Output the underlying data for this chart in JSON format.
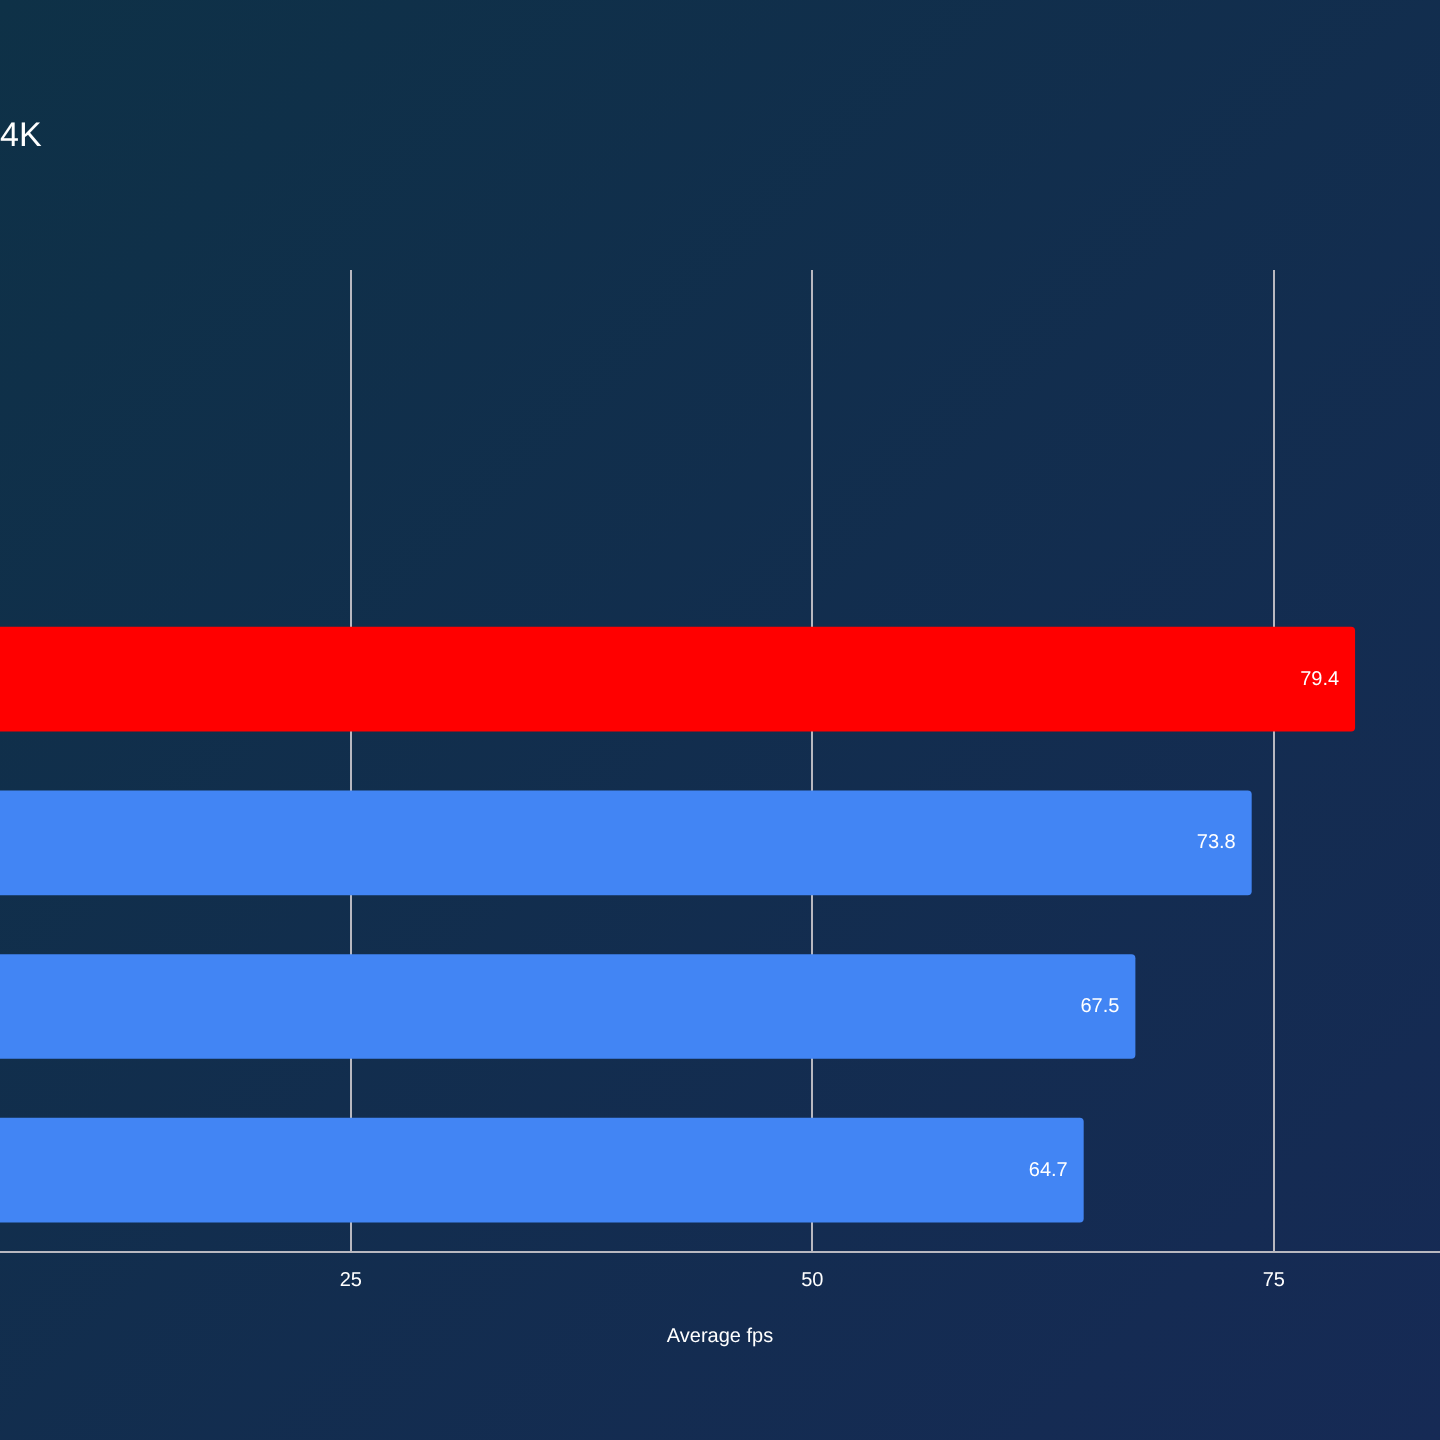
{
  "chart_data": {
    "type": "bar",
    "orientation": "horizontal",
    "title": "4K",
    "xlabel": "Average fps",
    "categories": [
      null,
      null,
      null,
      null,
      null,
      null
    ],
    "values": [
      null,
      null,
      79.4,
      73.8,
      67.5,
      64.7
    ],
    "colors": [
      "#4285f4",
      "#4285f4",
      "#ff0000",
      "#4285f4",
      "#4285f4",
      "#4285f4"
    ],
    "xlim": [
      6,
      84
    ],
    "xticks": [
      25,
      50,
      75
    ],
    "grid": "x",
    "data_labels": true,
    "tick_labels": "x",
    "legend": false
  }
}
